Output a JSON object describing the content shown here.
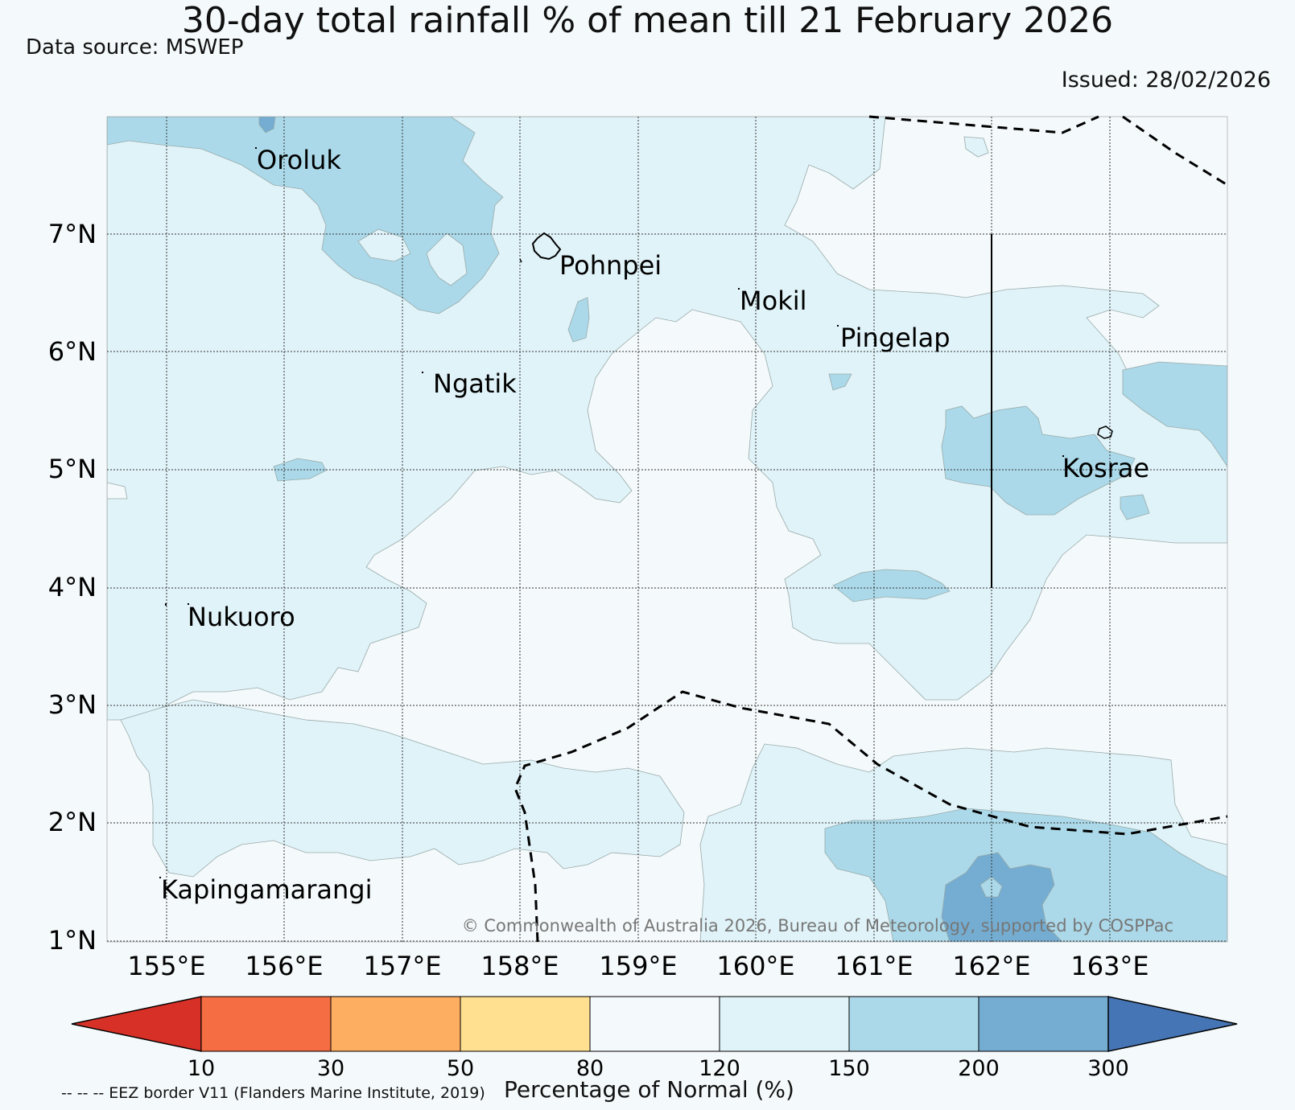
{
  "header": {
    "title": "30-day total rainfall % of mean till 21 February 2026",
    "data_source": "Data source: MSWEP",
    "issued": "Issued: 28/02/2026"
  },
  "map": {
    "lat_labels": [
      "7°N",
      "6°N",
      "5°N",
      "4°N",
      "3°N",
      "2°N",
      "1°N"
    ],
    "lon_labels": [
      "155°E",
      "156°E",
      "157°E",
      "158°E",
      "159°E",
      "160°E",
      "161°E",
      "162°E",
      "163°E"
    ],
    "places": [
      "Oroluk",
      "Pohnpei",
      "Mokil",
      "Pingelap",
      "Ngatik",
      "Kosrae",
      "Nukuoro",
      "Kapingamarangi"
    ],
    "credit": "© Commonwealth of Australia 2026, Bureau of Meteorology, supported by COSPPac"
  },
  "colorbar": {
    "ticks": [
      "10",
      "30",
      "50",
      "80",
      "120",
      "150",
      "200",
      "300"
    ],
    "colors": [
      "#d73027",
      "#f46d43",
      "#fdae61",
      "#fee090",
      "#f4f9fb",
      "#e0f3f8",
      "#abd9e9",
      "#74add1",
      "#4575b4"
    ],
    "title": "Percentage of Normal (%)",
    "footnote": "-- -- -- EEZ border V11 (Flanders Marine Institute, 2019)"
  }
}
